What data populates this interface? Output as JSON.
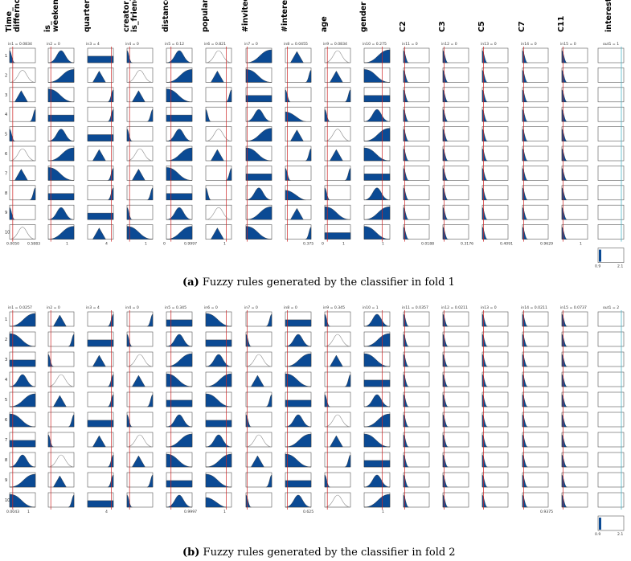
{
  "panel_a": {
    "columns": [
      "Time_\ndiffernce",
      "is_\nweekend",
      "quarter",
      "creator_\nis_friend",
      "distance",
      "popularity",
      "#invited",
      "#interested",
      "age",
      "gender",
      "C2",
      "C3",
      "C5",
      "C7",
      "C11",
      "interested"
    ],
    "input_values": [
      "in1 = 0.0834",
      "in2 = 0",
      "in3 = 4",
      "in4 = 0",
      "in5 = 0.12",
      "in6 = 0.821",
      "in7 = 0",
      "in8 = 0.0455",
      "in9 = 0.0834",
      "in10 = 0.275",
      "in11 = 0",
      "in12 = 0",
      "in13 = 0",
      "in14 = 0",
      "in15 = 0",
      "out1 = 1"
    ],
    "range_min": [
      "0.0050",
      "",
      "",
      "",
      "0",
      "",
      "",
      "",
      "0",
      "",
      "",
      "",
      "",
      "",
      "",
      ""
    ],
    "range_max": [
      "0.5883",
      "1",
      "4",
      "1",
      "0.9997",
      "1",
      "",
      "0.375",
      "1",
      "1",
      "0.0188",
      "0.3176",
      "0.4091",
      "0.9629",
      "1",
      ""
    ],
    "output_axis": [
      "0.9",
      "2.1"
    ],
    "rows": [
      "1",
      "2",
      "3",
      "4",
      "5",
      "6",
      "7",
      "8",
      "9",
      "10"
    ],
    "caption_label": "(a)",
    "caption_text": "Fuzzy rules generated by the classifier in fold 1"
  },
  "panel_b": {
    "input_values": [
      "in1 = 0.0257",
      "in2 = 0",
      "in3 = 4",
      "in4 = 0",
      "in5 = 0.345",
      "in6 = 0",
      "in7 = 0",
      "in8 = 0",
      "in9 = 0.345",
      "in10 = 1",
      "in11 = 0.0357",
      "in12 = 0.0211",
      "in13 = 0",
      "in14 = 0.0211",
      "in15 = 0.0737",
      "out1 = 2"
    ],
    "range_min": [
      "0.0043",
      "",
      "",
      "",
      "",
      "",
      "",
      "",
      "",
      "",
      "",
      "",
      "",
      "",
      "",
      ""
    ],
    "range_max": [
      "1",
      "",
      "4",
      "",
      "0.9997",
      "1",
      "",
      "0.625",
      "",
      "1",
      "",
      "",
      "",
      "0.9375",
      "",
      ""
    ],
    "output_axis": [
      "0.9",
      "2.1"
    ],
    "rows": [
      "1",
      "2",
      "3",
      "4",
      "5",
      "6",
      "7",
      "8",
      "9",
      "10"
    ],
    "caption_label": "(b)",
    "caption_text": "Fuzzy rules generated by the classifier in fold 2"
  },
  "colors": {
    "fill": "#0b4a94",
    "curve": "#8a8a8a",
    "marker": "#cc2222",
    "cyan": "#4fb5c8"
  }
}
